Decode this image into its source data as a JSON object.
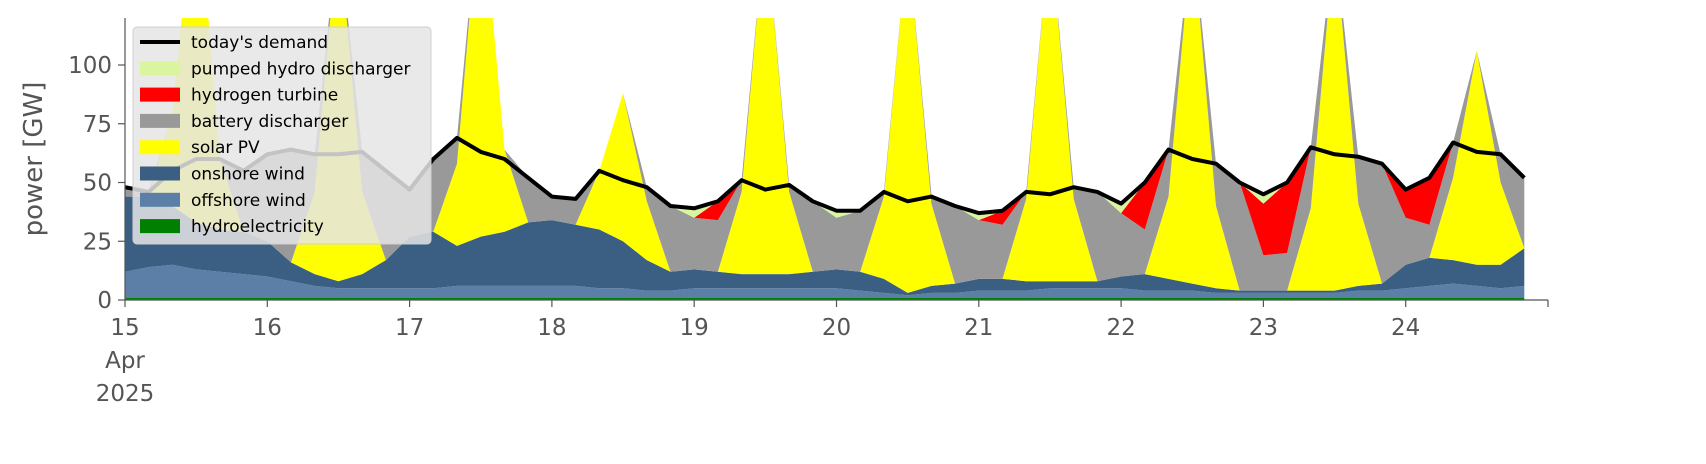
{
  "chart_data": {
    "type": "area",
    "y_label": "power [GW]",
    "ylim": [
      0,
      120
    ],
    "yticks": [
      0,
      25,
      50,
      75,
      100
    ],
    "xlim": [
      "2025-04-15T00:00",
      "2025-04-25T00:00"
    ],
    "xticks": [
      {
        "value": "2025-04-15T00:00",
        "label": [
          "15",
          "Apr",
          "2025"
        ]
      },
      {
        "value": "2025-04-16T00:00",
        "label": [
          "16"
        ]
      },
      {
        "value": "2025-04-17T00:00",
        "label": [
          "17"
        ]
      },
      {
        "value": "2025-04-18T00:00",
        "label": [
          "18"
        ]
      },
      {
        "value": "2025-04-19T00:00",
        "label": [
          "19"
        ]
      },
      {
        "value": "2025-04-20T00:00",
        "label": [
          "20"
        ]
      },
      {
        "value": "2025-04-21T00:00",
        "label": [
          "21"
        ]
      },
      {
        "value": "2025-04-22T00:00",
        "label": [
          "22"
        ]
      },
      {
        "value": "2025-04-23T00:00",
        "label": [
          "23"
        ]
      },
      {
        "value": "2025-04-24T00:00",
        "label": [
          "24"
        ]
      },
      {
        "value": "2025-04-25T00:00",
        "label": null
      }
    ],
    "legend": "upper left",
    "x": [
      "2025-04-15T00:00",
      "2025-04-15T04:00",
      "2025-04-15T08:00",
      "2025-04-15T12:00",
      "2025-04-15T16:00",
      "2025-04-15T20:00",
      "2025-04-16T00:00",
      "2025-04-16T04:00",
      "2025-04-16T08:00",
      "2025-04-16T12:00",
      "2025-04-16T16:00",
      "2025-04-16T20:00",
      "2025-04-17T00:00",
      "2025-04-17T04:00",
      "2025-04-17T08:00",
      "2025-04-17T12:00",
      "2025-04-17T16:00",
      "2025-04-17T20:00",
      "2025-04-18T00:00",
      "2025-04-18T04:00",
      "2025-04-18T08:00",
      "2025-04-18T12:00",
      "2025-04-18T16:00",
      "2025-04-18T20:00",
      "2025-04-19T00:00",
      "2025-04-19T04:00",
      "2025-04-19T08:00",
      "2025-04-19T12:00",
      "2025-04-19T16:00",
      "2025-04-19T20:00",
      "2025-04-20T00:00",
      "2025-04-20T04:00",
      "2025-04-20T08:00",
      "2025-04-20T12:00",
      "2025-04-20T16:00",
      "2025-04-20T20:00",
      "2025-04-21T00:00",
      "2025-04-21T04:00",
      "2025-04-21T08:00",
      "2025-04-21T12:00",
      "2025-04-21T16:00",
      "2025-04-21T20:00",
      "2025-04-22T00:00",
      "2025-04-22T04:00",
      "2025-04-22T08:00",
      "2025-04-22T12:00",
      "2025-04-22T16:00",
      "2025-04-22T20:00",
      "2025-04-23T00:00",
      "2025-04-23T04:00",
      "2025-04-23T08:00",
      "2025-04-23T12:00",
      "2025-04-23T16:00",
      "2025-04-23T20:00",
      "2025-04-24T00:00",
      "2025-04-24T04:00",
      "2025-04-24T08:00",
      "2025-04-24T12:00",
      "2025-04-24T16:00",
      "2025-04-24T20:00"
    ],
    "series": [
      {
        "name": "today's demand",
        "type": "line",
        "color": "#000000",
        "values": [
          48,
          46,
          55,
          60,
          60,
          55,
          62,
          64,
          62,
          62,
          63,
          55,
          47,
          60,
          69,
          63,
          60,
          52,
          44,
          43,
          55,
          51,
          48,
          40,
          39,
          42,
          51,
          47,
          49,
          42,
          38,
          38,
          46,
          42,
          44,
          40,
          37,
          38,
          46,
          45,
          48,
          46,
          41,
          50,
          64,
          60,
          58,
          50,
          45,
          50,
          65,
          62,
          61,
          58,
          47,
          52,
          67,
          63,
          62,
          52
        ]
      },
      {
        "name": "pumped hydro discharger",
        "type": "area",
        "color": "#d9f5a0",
        "values": [
          0,
          0,
          0,
          0,
          0,
          0,
          0,
          0,
          0,
          0,
          0,
          0,
          0,
          0,
          0,
          0,
          0,
          0,
          0,
          0,
          0,
          0,
          0,
          0,
          4,
          0,
          0,
          0,
          0,
          0,
          3,
          0,
          0,
          0,
          0,
          0,
          3,
          0,
          0,
          0,
          0,
          0,
          4,
          0,
          0,
          0,
          0,
          0,
          4,
          0,
          0,
          0,
          0,
          0,
          0,
          0,
          0,
          0,
          0,
          0
        ]
      },
      {
        "name": "hydrogen turbine",
        "type": "area",
        "color": "#ff0000",
        "values": [
          0,
          0,
          0,
          0,
          0,
          0,
          0,
          0,
          0,
          0,
          0,
          0,
          0,
          0,
          0,
          0,
          0,
          0,
          0,
          0,
          0,
          0,
          0,
          0,
          0,
          8,
          0,
          0,
          0,
          0,
          0,
          0,
          0,
          0,
          0,
          0,
          0,
          6,
          0,
          0,
          0,
          0,
          0,
          20,
          0,
          0,
          0,
          0,
          22,
          30,
          0,
          0,
          0,
          0,
          12,
          20,
          0,
          0,
          0,
          0
        ]
      },
      {
        "name": "battery discharger",
        "type": "area",
        "color": "#999999",
        "values": [
          4,
          2,
          0,
          0,
          0,
          26,
          37,
          48,
          16,
          0,
          17,
          38,
          20,
          31,
          11,
          0,
          0,
          19,
          10,
          11,
          0,
          0,
          6,
          28,
          22,
          22,
          5,
          0,
          3,
          30,
          22,
          26,
          2,
          0,
          4,
          33,
          25,
          23,
          3,
          0,
          5,
          38,
          27,
          19,
          20,
          0,
          18,
          46,
          15,
          16,
          26,
          0,
          20,
          51,
          20,
          14,
          15,
          0,
          12,
          30
        ]
      },
      {
        "name": "solar PV",
        "type": "area",
        "color": "#ffff00",
        "values": [
          0,
          0,
          40,
          150,
          30,
          0,
          0,
          0,
          35,
          150,
          35,
          0,
          0,
          0,
          35,
          150,
          35,
          0,
          0,
          0,
          25,
          63,
          25,
          0,
          0,
          0,
          35,
          150,
          35,
          0,
          0,
          0,
          35,
          150,
          35,
          0,
          0,
          0,
          35,
          150,
          35,
          0,
          0,
          0,
          35,
          150,
          35,
          0,
          0,
          0,
          35,
          150,
          35,
          0,
          0,
          0,
          35,
          91,
          35,
          0
        ]
      },
      {
        "name": "onshore wind",
        "type": "area",
        "color": "#3a5f83",
        "values": [
          32,
          30,
          25,
          20,
          18,
          18,
          15,
          8,
          5,
          3,
          6,
          12,
          22,
          24,
          17,
          21,
          23,
          27,
          28,
          26,
          25,
          20,
          13,
          8,
          8,
          7,
          6,
          6,
          6,
          7,
          8,
          8,
          6,
          1,
          3,
          4,
          5,
          5,
          4,
          3,
          3,
          3,
          5,
          7,
          5,
          3,
          2,
          1,
          1,
          1,
          1,
          1,
          2,
          3,
          10,
          12,
          10,
          9,
          10,
          16
        ]
      },
      {
        "name": "offshore wind",
        "type": "area",
        "color": "#5b7fa6",
        "values": [
          11,
          13,
          14,
          12,
          11,
          10,
          9,
          7,
          5,
          4,
          4,
          4,
          4,
          4,
          5,
          5,
          5,
          5,
          5,
          5,
          4,
          4,
          3,
          3,
          4,
          4,
          4,
          4,
          4,
          4,
          4,
          3,
          2,
          1,
          2,
          2,
          3,
          3,
          3,
          4,
          4,
          4,
          4,
          3,
          3,
          3,
          2,
          2,
          2,
          2,
          2,
          2,
          3,
          3,
          4,
          5,
          6,
          5,
          4,
          5
        ]
      },
      {
        "name": "hydroelectricity",
        "type": "area",
        "color": "#008000",
        "values": [
          1,
          1,
          1,
          1,
          1,
          1,
          1,
          1,
          1,
          1,
          1,
          1,
          1,
          1,
          1,
          1,
          1,
          1,
          1,
          1,
          1,
          1,
          1,
          1,
          1,
          1,
          1,
          1,
          1,
          1,
          1,
          1,
          1,
          1,
          1,
          1,
          1,
          1,
          1,
          1,
          1,
          1,
          1,
          1,
          1,
          1,
          1,
          1,
          1,
          1,
          1,
          1,
          1,
          1,
          1,
          1,
          1,
          1,
          1,
          1
        ]
      }
    ]
  }
}
